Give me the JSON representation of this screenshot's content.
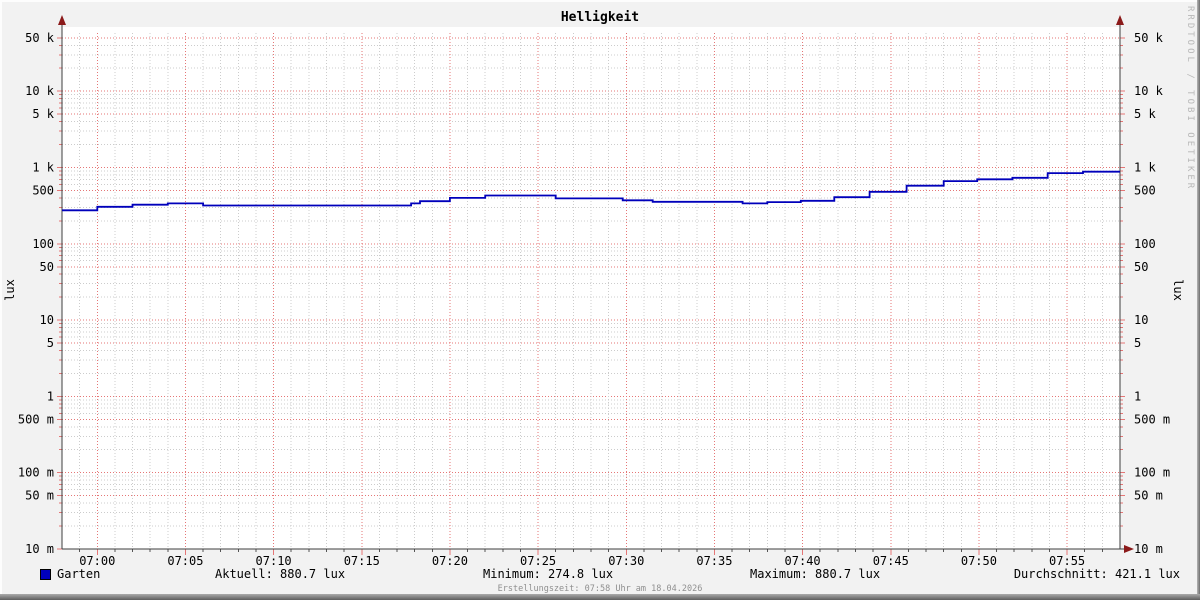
{
  "title": "Helligkeit",
  "watermark": "RRDTOOL / TOBI OETIKER",
  "footer": "Erstellungszeit: 07:58 Uhr am 18.04.2026",
  "axis_unit_left": "lux",
  "axis_unit_right": "lux",
  "legend": {
    "series_name": "Garten",
    "series_color": "#0000bb",
    "stats": {
      "aktuell": "Aktuell: 880.7 lux",
      "minimum": "Minimum: 274.8 lux",
      "maximum": "Maximum: 880.7 lux",
      "durchschnitt": "Durchschnitt: 421.1 lux"
    }
  },
  "chart_data": {
    "type": "line",
    "title": "Helligkeit",
    "ylabel": "lux",
    "y_scale": "log",
    "ylim": [
      0.01,
      60000
    ],
    "x_range": [
      "06:58",
      "07:58"
    ],
    "x_minor_interval_min": 1,
    "x_major_interval_min": 5,
    "grid": true,
    "legend_position": "bottom",
    "x_ticks": [
      {
        "t": 2,
        "label": "07:00"
      },
      {
        "t": 7,
        "label": "07:05"
      },
      {
        "t": 12,
        "label": "07:10"
      },
      {
        "t": 17,
        "label": "07:15"
      },
      {
        "t": 22,
        "label": "07:20"
      },
      {
        "t": 27,
        "label": "07:25"
      },
      {
        "t": 32,
        "label": "07:30"
      },
      {
        "t": 37,
        "label": "07:35"
      },
      {
        "t": 42,
        "label": "07:40"
      },
      {
        "t": 47,
        "label": "07:45"
      },
      {
        "t": 52,
        "label": "07:50"
      },
      {
        "t": 57,
        "label": "07:55"
      }
    ],
    "y_ticks": [
      {
        "v": 50000,
        "label": "50 k"
      },
      {
        "v": 10000,
        "label": "10 k"
      },
      {
        "v": 5000,
        "label": "5 k"
      },
      {
        "v": 1000,
        "label": "1 k"
      },
      {
        "v": 500,
        "label": "500"
      },
      {
        "v": 100,
        "label": "100"
      },
      {
        "v": 50,
        "label": "50"
      },
      {
        "v": 10,
        "label": "10"
      },
      {
        "v": 5,
        "label": "5"
      },
      {
        "v": 1,
        "label": "1"
      },
      {
        "v": 0.5,
        "label": "500 m"
      },
      {
        "v": 0.1,
        "label": "100 m"
      },
      {
        "v": 0.05,
        "label": "50 m"
      },
      {
        "v": 0.01,
        "label": "10 m"
      }
    ],
    "series": [
      {
        "name": "Garten",
        "color": "#0000bb",
        "steps_minutes_after_0658_lux": [
          [
            0,
            274.8
          ],
          [
            2,
            305
          ],
          [
            4,
            325
          ],
          [
            6,
            338
          ],
          [
            8,
            318
          ],
          [
            19.8,
            338
          ],
          [
            20.3,
            362
          ],
          [
            22,
            400
          ],
          [
            24,
            430
          ],
          [
            28,
            394
          ],
          [
            31.8,
            372
          ],
          [
            33.5,
            355
          ],
          [
            38.6,
            338
          ],
          [
            40,
            352
          ],
          [
            41.9,
            366
          ],
          [
            43.8,
            408
          ],
          [
            45.8,
            480
          ],
          [
            47.9,
            577
          ],
          [
            50,
            663
          ],
          [
            51.9,
            700
          ],
          [
            53.9,
            733
          ],
          [
            55.9,
            845
          ],
          [
            57.9,
            880.7
          ],
          [
            60,
            880.7
          ]
        ]
      }
    ],
    "stats": {
      "aktuell_lux": 880.7,
      "minimum_lux": 274.8,
      "maximum_lux": 880.7,
      "durchschnitt_lux": 421.1
    },
    "colors": {
      "background": "#f2f2f2",
      "canvas": "#ffffff",
      "grid_major": "#e57676",
      "grid_minor": "#cccccc",
      "axis": "#3e3e3e",
      "arrow": "#8b1a1a",
      "x_minor_tick": "#555555",
      "text": "#000000",
      "line": "#0000bb"
    }
  }
}
